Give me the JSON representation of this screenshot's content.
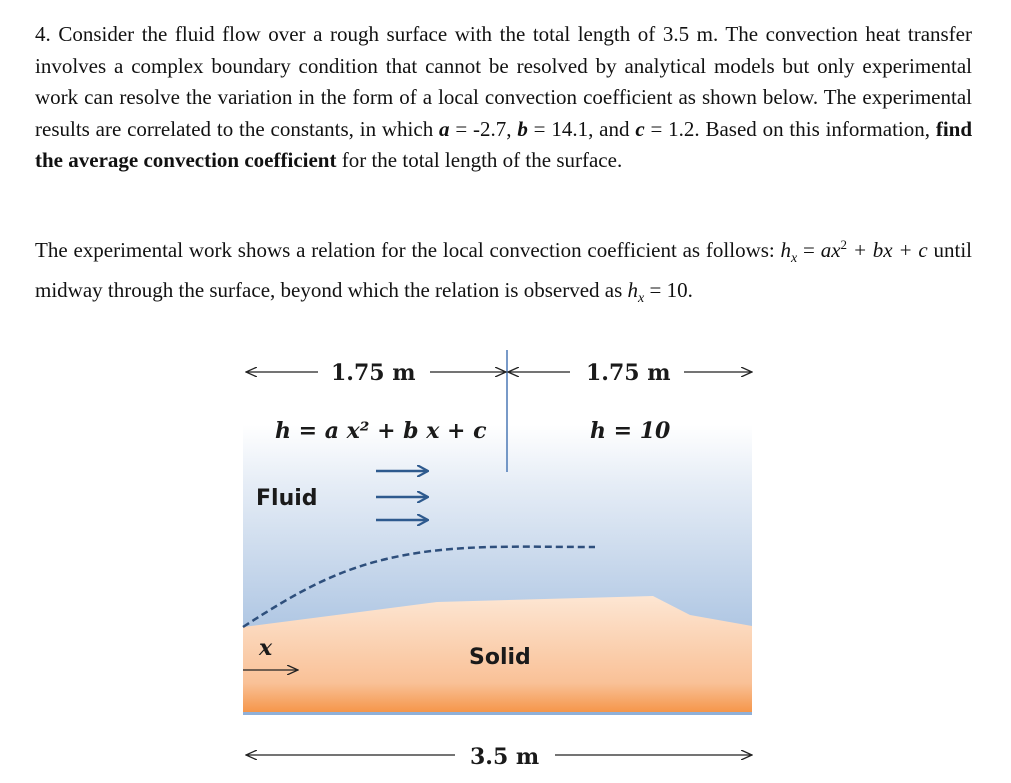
{
  "problem": {
    "p1": {
      "t1": "4. Consider the fluid flow over a rough surface with the total length of 3.5 m. The convection heat transfer involves a complex boundary condition that cannot be resolved by analytical models but only experimental work can resolve the variation in the form of a local convection coefficient as shown below. The experimental results are correlated to the constants, in which ",
      "a": "a",
      "t2": " = -2.7, ",
      "b": "b",
      "t3": " = 14.1, and ",
      "c": "c",
      "t4": " = 1.2. Based on this information, ",
      "bold": "find the average convection coefficient",
      "t5": " for the total length of the surface."
    },
    "p2": {
      "t1": "The experimental work shows a relation for the local convection coefficient as follows: ",
      "hx1": "h",
      "sub1": "x",
      "eq1": " = ",
      "expr": "ax",
      "sup": "2",
      "expr2": " + bx + c",
      "t2": " until midway through the surface, beyond which the relation is observed as ",
      "hx2": "h",
      "sub2": "x",
      "t3": " = 10."
    }
  },
  "diagram": {
    "left_length": "1.75 m",
    "right_length": "1.75 m",
    "total_length": "3.5 m",
    "left_relation": "h = a x² + b x + c",
    "right_relation": "h = 10",
    "fluid_label": "Fluid",
    "solid_label": "Solid",
    "x_label": "x",
    "colors": {
      "fluid_top": "#ffffff",
      "fluid_bottom": "#8fb0d8",
      "solid_top": "#fde3cf",
      "solid_bottom": "#f59a50",
      "flow_arrow": "#2e5a8e",
      "divider": "#4a78b5"
    }
  }
}
